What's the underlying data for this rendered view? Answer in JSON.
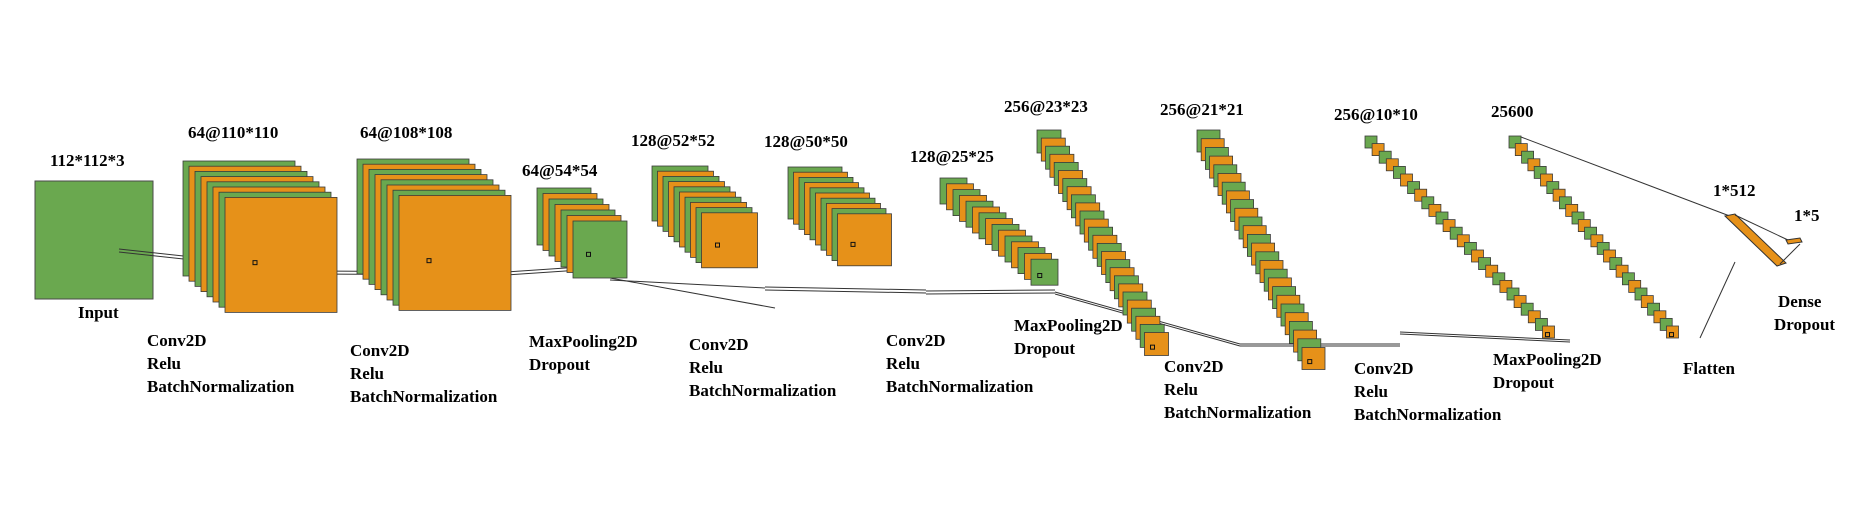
{
  "colors": {
    "green": "#6aa84f",
    "orange": "#e69119",
    "line": "#000000"
  },
  "input": {
    "dim": "112*112*3",
    "name": "Input"
  },
  "stacks": [
    {
      "dim": "64@110*110",
      "ops": [
        "Conv2D",
        "Relu",
        "BatchNormalization"
      ]
    },
    {
      "dim": "64@108*108",
      "ops": [
        "Conv2D",
        "Relu",
        "BatchNormalization"
      ]
    },
    {
      "dim": "64@54*54",
      "ops": [
        "MaxPooling2D",
        "Dropout"
      ]
    },
    {
      "dim": "128@52*52",
      "ops": [
        "Conv2D",
        "Relu",
        "BatchNormalization"
      ]
    },
    {
      "dim": "128@50*50",
      "ops": [
        "Conv2D",
        "Relu",
        "BatchNormalization"
      ]
    },
    {
      "dim": "128@25*25",
      "ops": [
        "MaxPooling2D",
        "Dropout"
      ]
    },
    {
      "dim": "256@23*23",
      "ops": [
        "Conv2D",
        "Relu",
        "BatchNormalization"
      ]
    },
    {
      "dim": "256@21*21",
      "ops": [
        "Conv2D",
        "Relu",
        "BatchNormalization"
      ]
    },
    {
      "dim": "256@10*10",
      "ops": [
        "MaxPooling2D",
        "Dropout"
      ]
    },
    {
      "dim": "25600",
      "ops": [
        "Flatten"
      ]
    }
  ],
  "dense": {
    "dim1": "1*512",
    "dim2": "1*5",
    "ops": [
      "Dense",
      "Dropout"
    ]
  }
}
